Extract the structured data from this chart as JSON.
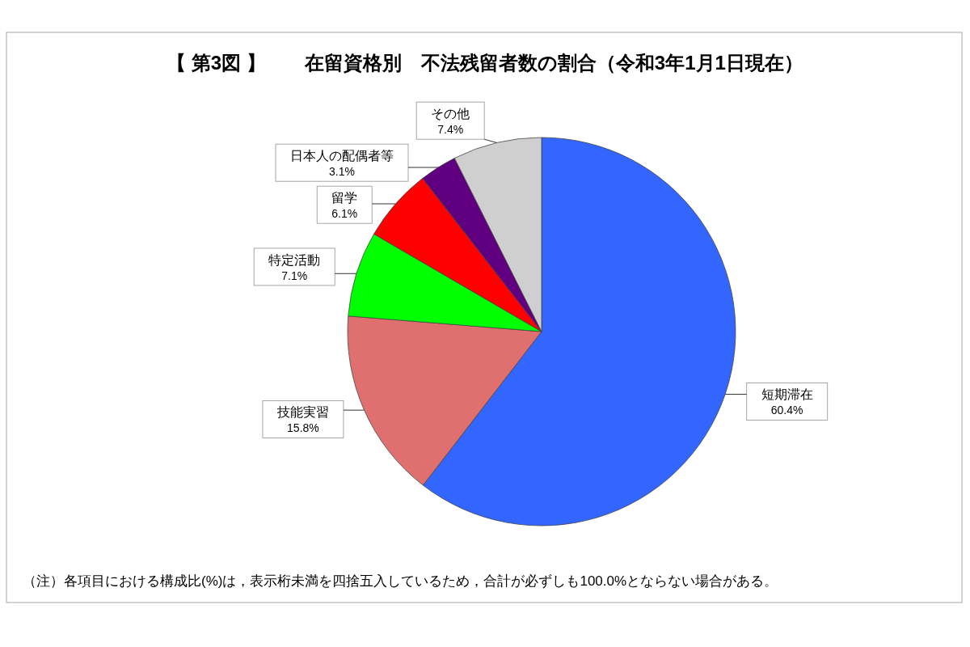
{
  "chart_data": {
    "type": "pie",
    "title": "【 第3図 】　　在留資格別　不法残留者数の割合（令和3年1月1日現在）",
    "categories": [
      "短期滞在",
      "技能実習",
      "特定活動",
      "留学",
      "日本人の配偶者等",
      "その他"
    ],
    "values": [
      60.4,
      15.8,
      7.1,
      6.1,
      3.1,
      7.4
    ],
    "colors": [
      "#3366ff",
      "#e07070",
      "#00ff00",
      "#ff0000",
      "#600080",
      "#cfcfcf"
    ],
    "value_labels": [
      "60.4%",
      "15.8%",
      "7.1%",
      "6.1%",
      "3.1%",
      "7.4%"
    ],
    "annotations": [
      "（注）各項目における構成比(%)は，表示桁未満を四捨五入しているため，合計が必ずしも100.0%とならない場合がある。"
    ]
  }
}
